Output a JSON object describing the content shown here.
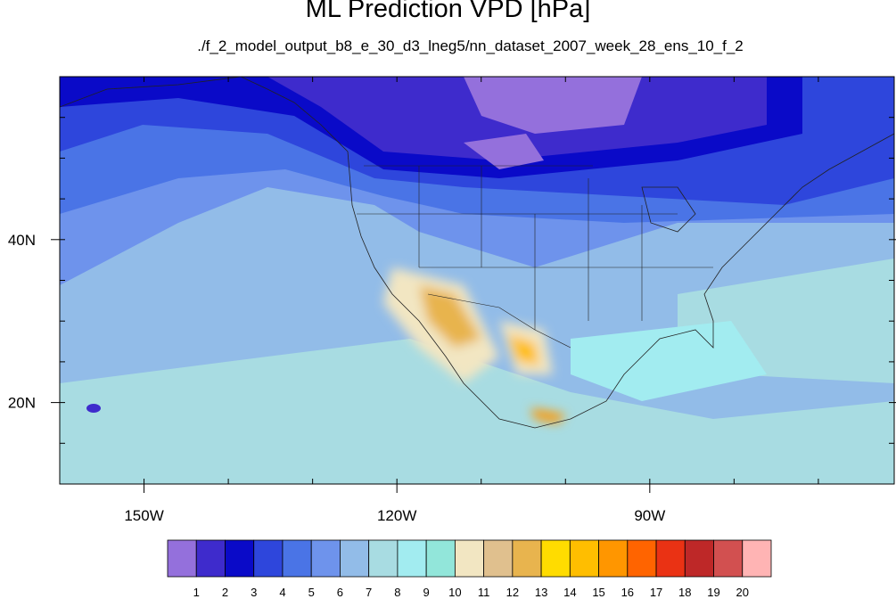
{
  "figure": {
    "title": "ML Prediction VPD [hPa]",
    "subtitle": "./f_2_model_output_b8_e_30_d3_lneg5/nn_dataset_2007_week_28_ens_10_f_2"
  },
  "map_extent": {
    "lon_min": -160,
    "lon_max": -61,
    "lat_min": 10,
    "lat_max": 60
  },
  "lon_ticks": [
    {
      "value": -150,
      "label": "150W"
    },
    {
      "value": -120,
      "label": "120W"
    },
    {
      "value": -90,
      "label": "90W"
    }
  ],
  "lat_ticks": [
    {
      "value": 40,
      "label": "40N"
    },
    {
      "value": 20,
      "label": "20N"
    }
  ],
  "colorbar": {
    "levels": [
      "1",
      "2",
      "3",
      "4",
      "5",
      "6",
      "7",
      "8",
      "9",
      "10",
      "11",
      "12",
      "13",
      "14",
      "15",
      "16",
      "17",
      "18",
      "19",
      "20"
    ],
    "colors": [
      "#9470dc",
      "#3e2bcc",
      "#0a0ac8",
      "#2e46dc",
      "#4a74e6",
      "#6e93ec",
      "#92bce8",
      "#a8dce2",
      "#a2ecf0",
      "#92e6da",
      "#f2e6c2",
      "#e0c08e",
      "#e8b44e",
      "#ffdc00",
      "#ffbe00",
      "#ff9600",
      "#ff6400",
      "#ea3214",
      "#be2828",
      "#d25050",
      "#ffb4b4"
    ]
  }
}
